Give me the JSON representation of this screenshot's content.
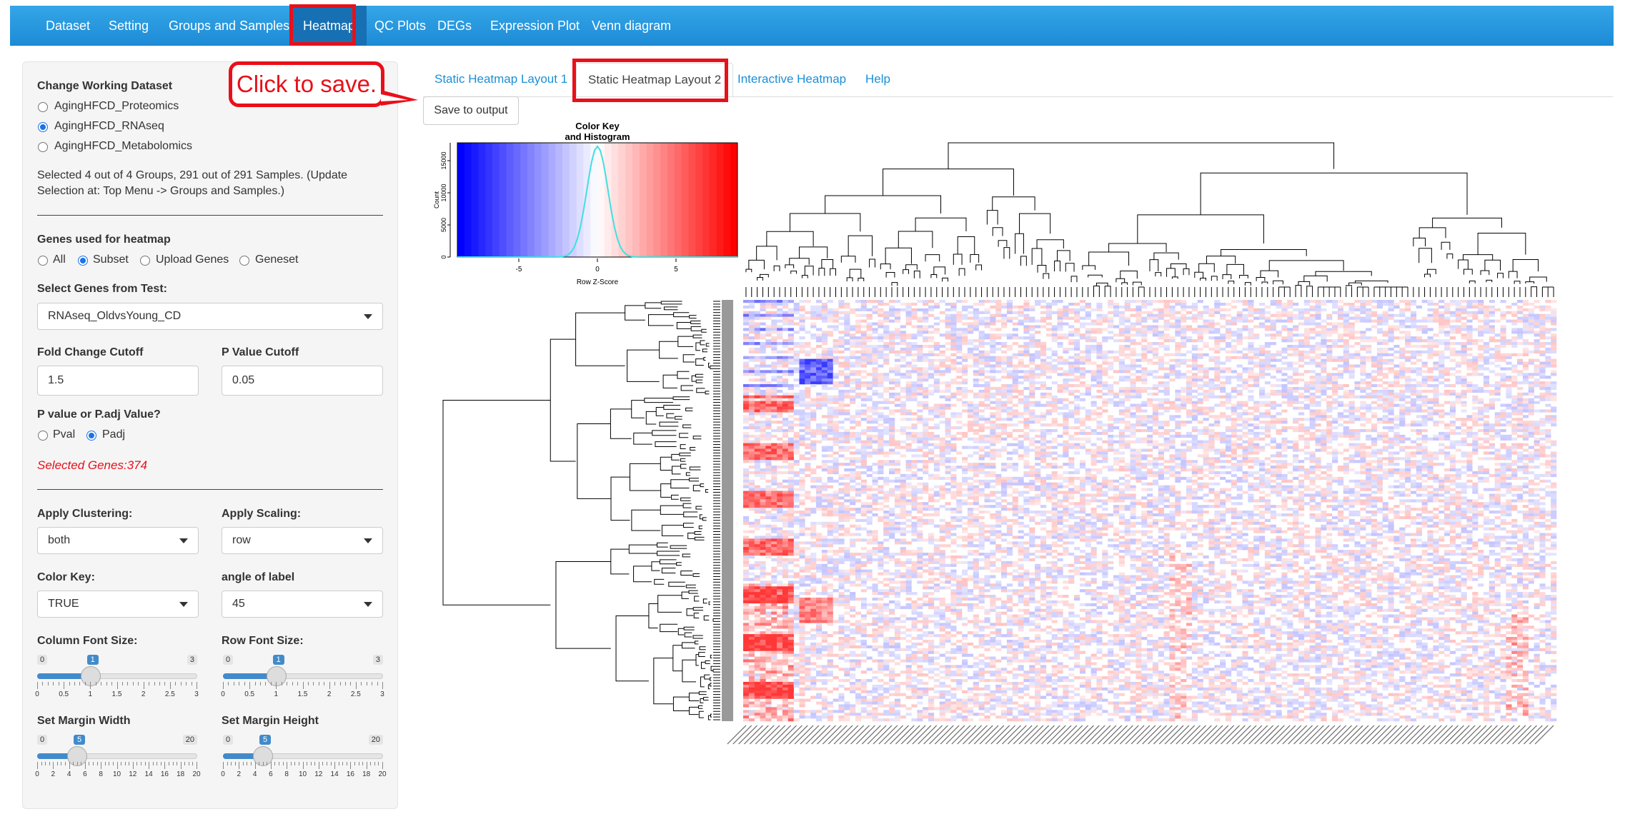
{
  "navbar": {
    "items": [
      "Dataset",
      "Setting",
      "Groups and Samples",
      "Heatmap",
      "QC Plots",
      "DEGs",
      "Expression Plot",
      "Venn diagram"
    ],
    "active": "Heatmap"
  },
  "sidebar": {
    "dataset_heading": "Change Working Dataset",
    "datasets": [
      {
        "label": "AgingHFCD_Proteomics",
        "checked": false
      },
      {
        "label": "AgingHFCD_RNAseq",
        "checked": true
      },
      {
        "label": "AgingHFCD_Metabolomics",
        "checked": false
      }
    ],
    "selection_info_line1": "Selected 4 out of 4 Groups, 291 out of 291 Samples. (Update",
    "selection_info_line2": "Selection at: Top Menu -> Groups and Samples.)",
    "genes_heading": "Genes used for heatmap",
    "gene_options": [
      {
        "label": "All",
        "checked": false
      },
      {
        "label": "Subset",
        "checked": true
      },
      {
        "label": "Upload Genes",
        "checked": false
      },
      {
        "label": "Geneset",
        "checked": false
      }
    ],
    "select_test_label": "Select Genes from Test:",
    "select_test_value": "RNAseq_OldvsYoung_CD",
    "fc_label": "Fold Change Cutoff",
    "fc_value": "1.5",
    "pval_label": "P Value Cutoff",
    "pval_value": "0.05",
    "ptype_label": "P value or P.adj Value?",
    "ptype_options": [
      {
        "label": "Pval",
        "checked": false
      },
      {
        "label": "Padj",
        "checked": true
      }
    ],
    "selected_genes": "Selected Genes:374",
    "clustering_label": "Apply Clustering:",
    "clustering_value": "both",
    "scaling_label": "Apply Scaling:",
    "scaling_value": "row",
    "colorkey_label": "Color Key:",
    "colorkey_value": "TRUE",
    "angle_label": "angle of label",
    "angle_value": "45",
    "col_font_label": "Column Font Size:",
    "row_font_label": "Row Font Size:",
    "margin_w_label": "Set Margin Width",
    "margin_h_label": "Set Margin Height",
    "sliders": {
      "col_font": {
        "min": "0",
        "max": "3",
        "value": "1",
        "fraction": 0.3333,
        "ticks": [
          "0",
          "0.5",
          "1",
          "1.5",
          "2",
          "2.5",
          "3"
        ]
      },
      "row_font": {
        "min": "0",
        "max": "3",
        "value": "1",
        "fraction": 0.3333,
        "ticks": [
          "0",
          "0.5",
          "1",
          "1.5",
          "2",
          "2.5",
          "3"
        ]
      },
      "margin_w": {
        "min": "0",
        "max": "20",
        "value": "5",
        "fraction": 0.25,
        "ticks": [
          "0",
          "2",
          "4",
          "6",
          "8",
          "10",
          "12",
          "14",
          "16",
          "18",
          "20"
        ]
      },
      "margin_h": {
        "min": "0",
        "max": "20",
        "value": "5",
        "fraction": 0.25,
        "ticks": [
          "0",
          "2",
          "4",
          "6",
          "8",
          "10",
          "12",
          "14",
          "16",
          "18",
          "20"
        ]
      }
    }
  },
  "main": {
    "tabs": [
      "Static Heatmap Layout 1",
      "Static Heatmap Layout 2",
      "Interactive Heatmap",
      "Help"
    ],
    "active_tab": "Static Heatmap Layout 2",
    "save_button": "Save to output",
    "callout": "Click to save."
  },
  "heatmap": {
    "key_title_line1": "Color Key",
    "key_title_line2": "and Histogram",
    "key_ylabel": "Count",
    "key_xlabel": "Row Z-Score",
    "key_xticks": [
      "-5",
      "0",
      "5"
    ],
    "key_yticks": [
      "0",
      "5000",
      "10000",
      "15000"
    ],
    "colors": {
      "low": "#0000ff",
      "mid": "#ffffff",
      "high": "#ff0000",
      "histogram": "#40e0e0"
    }
  }
}
